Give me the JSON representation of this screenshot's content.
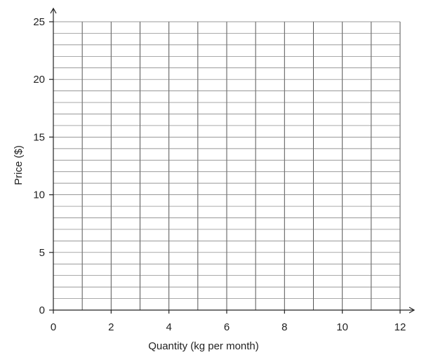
{
  "chart_data": {
    "type": "line",
    "title": "",
    "xlabel": "Quantity (kg per month)",
    "ylabel": "Price ($)",
    "xlim": [
      0,
      12
    ],
    "ylim": [
      0,
      25
    ],
    "x_ticks": [
      0,
      2,
      4,
      6,
      8,
      10,
      12
    ],
    "x_tick_labels": [
      "0",
      "2",
      "4",
      "6",
      "8",
      "10",
      "12"
    ],
    "y_ticks": [
      0,
      5,
      10,
      15,
      20,
      25
    ],
    "y_tick_labels": [
      "0",
      "5",
      "10",
      "15",
      "20",
      "25"
    ],
    "x_grid_step": 1,
    "y_grid_step": 1,
    "grid": true,
    "series": []
  }
}
